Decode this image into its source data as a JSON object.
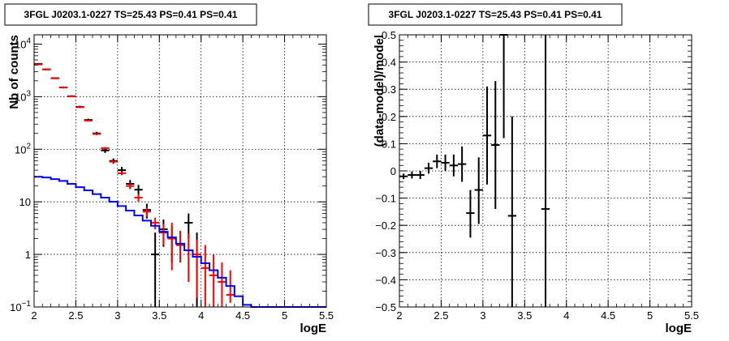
{
  "chart_data": [
    {
      "type": "scatter",
      "title": "3FGL J0203.1-0227 TS=25.43 PS=0.41 PS=0.41",
      "xlabel": "logE",
      "ylabel": "Nb of counts",
      "xlim": [
        2,
        5.5
      ],
      "ylim": [
        0.1,
        15000
      ],
      "yscale": "log",
      "grid": true,
      "x_ticks": [
        "2",
        "2.5",
        "3",
        "3.5",
        "4",
        "4.5",
        "5",
        "5.5"
      ],
      "y_ticks": [
        {
          "value": 0.1,
          "base": "10",
          "exp": "−1"
        },
        {
          "value": 1,
          "base": "1",
          "exp": ""
        },
        {
          "value": 10,
          "base": "10",
          "exp": ""
        },
        {
          "value": 100,
          "base": "10",
          "exp": "2"
        },
        {
          "value": 1000,
          "base": "10",
          "exp": "3"
        },
        {
          "value": 10000,
          "base": "10",
          "exp": "4"
        }
      ],
      "series": [
        {
          "color": "#000000",
          "kind": "errorbar",
          "points": [
            {
              "x": 2.05,
              "y": 4200,
              "lo": 4100,
              "hi": 4300
            },
            {
              "x": 2.15,
              "y": 3300,
              "lo": 3200,
              "hi": 3400
            },
            {
              "x": 2.25,
              "y": 2250,
              "lo": 2170,
              "hi": 2330
            },
            {
              "x": 2.35,
              "y": 1500,
              "lo": 1440,
              "hi": 1560
            },
            {
              "x": 2.45,
              "y": 1020,
              "lo": 980,
              "hi": 1060
            },
            {
              "x": 2.55,
              "y": 640,
              "lo": 610,
              "hi": 670
            },
            {
              "x": 2.65,
              "y": 360,
              "lo": 340,
              "hi": 380
            },
            {
              "x": 2.75,
              "y": 200,
              "lo": 186,
              "hi": 214
            },
            {
              "x": 2.85,
              "y": 95,
              "lo": 85,
              "hi": 105
            },
            {
              "x": 2.95,
              "y": 60,
              "lo": 53,
              "hi": 67
            },
            {
              "x": 3.05,
              "y": 40,
              "lo": 34,
              "hi": 46
            },
            {
              "x": 3.15,
              "y": 22,
              "lo": 18,
              "hi": 26
            },
            {
              "x": 3.25,
              "y": 17,
              "lo": 13,
              "hi": 21
            },
            {
              "x": 3.35,
              "y": 7,
              "lo": 4.8,
              "hi": 9.2
            },
            {
              "x": 3.45,
              "y": 1,
              "lo": 0.1,
              "hi": 2.6
            },
            {
              "x": 3.55,
              "y": 3,
              "lo": 1.4,
              "hi": 4.6
            },
            {
              "x": 3.65,
              "y": 2,
              "lo": 0.7,
              "hi": 3.4
            },
            {
              "x": 3.85,
              "y": 4,
              "lo": 2,
              "hi": 6
            },
            {
              "x": 3.95,
              "y": 1,
              "lo": 0.1,
              "hi": 2.6
            }
          ]
        },
        {
          "color": "#ff0000",
          "kind": "errorbar",
          "points": [
            {
              "x": 2.05,
              "y": 4100,
              "lo": 4060,
              "hi": 4140
            },
            {
              "x": 2.15,
              "y": 3280,
              "lo": 3240,
              "hi": 3320
            },
            {
              "x": 2.25,
              "y": 2230,
              "lo": 2200,
              "hi": 2260
            },
            {
              "x": 2.35,
              "y": 1490,
              "lo": 1470,
              "hi": 1510
            },
            {
              "x": 2.45,
              "y": 1010,
              "lo": 995,
              "hi": 1025
            },
            {
              "x": 2.55,
              "y": 630,
              "lo": 620,
              "hi": 640
            },
            {
              "x": 2.65,
              "y": 350,
              "lo": 343,
              "hi": 357
            },
            {
              "x": 2.75,
              "y": 195,
              "lo": 190,
              "hi": 200
            },
            {
              "x": 2.85,
              "y": 105,
              "lo": 100,
              "hi": 110
            },
            {
              "x": 2.95,
              "y": 58,
              "lo": 55,
              "hi": 61
            },
            {
              "x": 3.05,
              "y": 35,
              "lo": 32,
              "hi": 38
            },
            {
              "x": 3.15,
              "y": 20,
              "lo": 17.5,
              "hi": 22.5
            },
            {
              "x": 3.25,
              "y": 12,
              "lo": 10,
              "hi": 14
            },
            {
              "x": 3.35,
              "y": 6.5,
              "lo": 5.2,
              "hi": 7.8
            },
            {
              "x": 3.45,
              "y": 4,
              "lo": 3,
              "hi": 5
            },
            {
              "x": 3.55,
              "y": 2.6,
              "lo": 1.5,
              "hi": 3.8
            },
            {
              "x": 3.65,
              "y": 2,
              "lo": 0.5,
              "hi": 4
            },
            {
              "x": 3.75,
              "y": 1.5,
              "lo": 0.7,
              "hi": 2.8
            },
            {
              "x": 3.85,
              "y": 1.2,
              "lo": 0.3,
              "hi": 2.5
            },
            {
              "x": 3.95,
              "y": 1,
              "lo": 0.15,
              "hi": 1.9
            },
            {
              "x": 4.05,
              "y": 0.55,
              "lo": 0.1,
              "hi": 1.5
            },
            {
              "x": 4.15,
              "y": 0.4,
              "lo": 0.1,
              "hi": 1.0
            },
            {
              "x": 4.25,
              "y": 0.3,
              "lo": 0.1,
              "hi": 0.7
            },
            {
              "x": 4.35,
              "y": 0.17,
              "lo": 0.12,
              "hi": 0.5
            }
          ]
        },
        {
          "color": "#0000ff",
          "kind": "step",
          "edges": [
            2.0,
            2.1,
            2.2,
            2.3,
            2.4,
            2.5,
            2.6,
            2.7,
            2.8,
            2.9,
            3.0,
            3.1,
            3.2,
            3.3,
            3.4,
            3.5,
            3.6,
            3.7,
            3.8,
            3.9,
            4.0,
            4.1,
            4.2,
            4.3,
            4.4,
            4.5,
            4.6,
            5.5
          ],
          "values": [
            30,
            29,
            27,
            25,
            22,
            19,
            16.5,
            14,
            12,
            10,
            8.3,
            6.8,
            5.5,
            4.4,
            3.5,
            2.7,
            2.1,
            1.6,
            1.2,
            0.9,
            0.68,
            0.5,
            0.36,
            0.25,
            0.16,
            0.11,
            0.1
          ]
        }
      ]
    },
    {
      "type": "scatter",
      "title": "3FGL J0203.1-0227 TS=25.43 PS=0.41 PS=0.41",
      "xlabel": "logE",
      "ylabel": "(data-model)/model",
      "xlim": [
        2,
        5.5
      ],
      "ylim": [
        -0.5,
        0.5
      ],
      "grid": true,
      "x_ticks": [
        "2",
        "2.5",
        "3",
        "3.5",
        "4",
        "4.5",
        "5",
        "5.5"
      ],
      "y_ticks": [
        "−0.5",
        "−0.4",
        "−0.3",
        "−0.2",
        "−0.1",
        "0",
        "0.1",
        "0.2",
        "0.3",
        "0.4",
        "0.5"
      ],
      "series": [
        {
          "color": "#000000",
          "kind": "errorbar",
          "points": [
            {
              "x": 2.05,
              "y": -0.02,
              "lo": -0.03,
              "hi": -0.01
            },
            {
              "x": 2.15,
              "y": -0.015,
              "lo": -0.028,
              "hi": -0.002
            },
            {
              "x": 2.25,
              "y": -0.015,
              "lo": -0.03,
              "hi": 0.0
            },
            {
              "x": 2.35,
              "y": 0.01,
              "lo": -0.01,
              "hi": 0.03
            },
            {
              "x": 2.45,
              "y": 0.035,
              "lo": 0.01,
              "hi": 0.06
            },
            {
              "x": 2.55,
              "y": 0.03,
              "lo": 0.0,
              "hi": 0.06
            },
            {
              "x": 2.65,
              "y": 0.02,
              "lo": -0.02,
              "hi": 0.06
            },
            {
              "x": 2.75,
              "y": 0.025,
              "lo": -0.04,
              "hi": 0.09
            },
            {
              "x": 2.85,
              "y": -0.155,
              "lo": -0.245,
              "hi": -0.07
            },
            {
              "x": 2.95,
              "y": -0.07,
              "lo": -0.195,
              "hi": 0.05
            },
            {
              "x": 3.05,
              "y": 0.13,
              "lo": -0.05,
              "hi": 0.31
            },
            {
              "x": 3.15,
              "y": 0.095,
              "lo": -0.14,
              "hi": 0.33
            },
            {
              "x": 3.25,
              "y": 0.5,
              "lo": 0.12,
              "hi": 0.5
            },
            {
              "x": 3.35,
              "y": -0.165,
              "lo": -0.5,
              "hi": 0.2
            },
            {
              "x": 3.75,
              "y": -0.14,
              "lo": -0.5,
              "hi": 0.5
            }
          ]
        }
      ]
    }
  ]
}
